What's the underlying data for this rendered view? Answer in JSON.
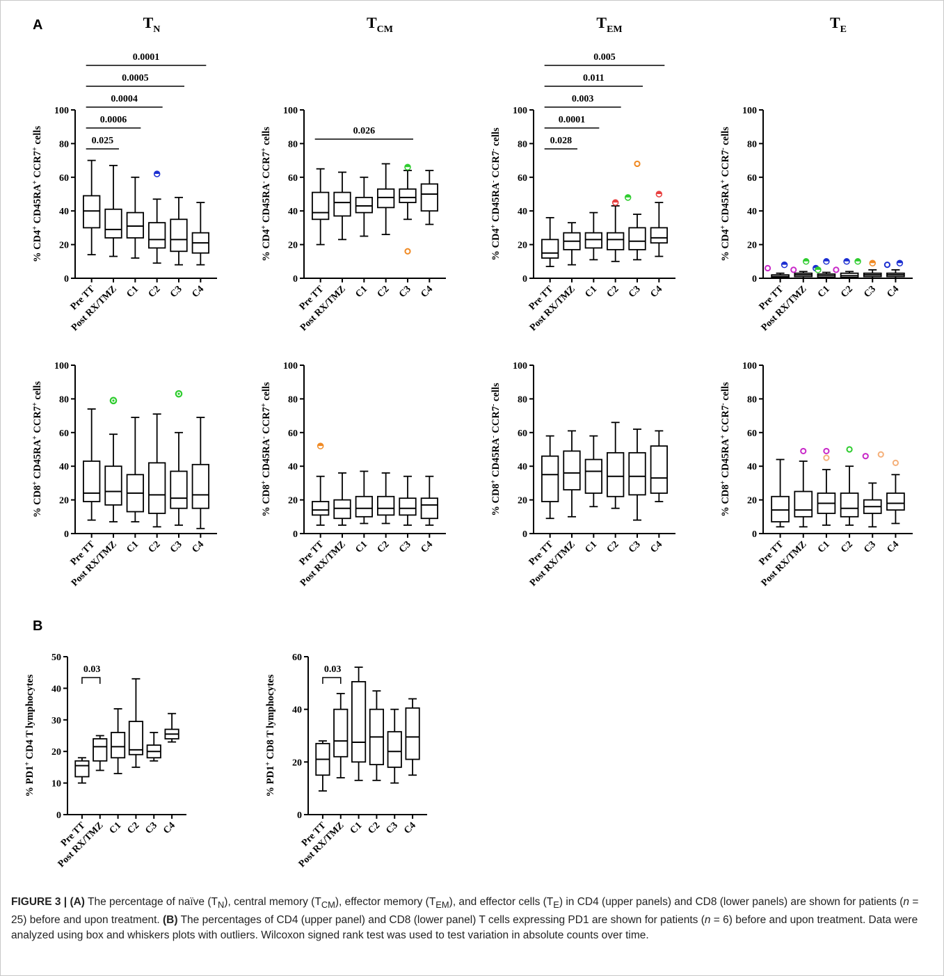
{
  "panel_labels": {
    "a": "A",
    "b": "B"
  },
  "column_titles": [
    {
      "main": "T",
      "sub": "N"
    },
    {
      "main": "T",
      "sub": "CM"
    },
    {
      "main": "T",
      "sub": "EM"
    },
    {
      "main": "T",
      "sub": "E"
    }
  ],
  "caption": {
    "label": "FIGURE 3 | ",
    "text_a_marker": "(A)",
    "text_a": " The percentage of naïve (T",
    "sub_n": "N",
    "text_a2": "), central memory (T",
    "sub_cm": "CM",
    "text_a3": "), effector memory (T",
    "sub_em": "EM",
    "text_a4": "), and effector cells (T",
    "sub_e": "E",
    "text_a5": ") in CD4 (upper panels) and CD8 (lower panels) are shown for patients (",
    "n_a_var": "n",
    "n_a_val": " = 25) before and upon treatment. ",
    "text_b_marker": "(B)",
    "text_b": " The percentages of CD4 (upper panel) and CD8 (lower panel) T cells expressing PD1 are shown for patients (",
    "n_b_var": "n",
    "n_b_val": " = 6) before and upon treatment. Data were analyzed using box and whiskers plots with outliers. Wilcoxon signed rank test was used to test variation in absolute counts over time."
  },
  "chart_data": [
    {
      "type": "boxplot",
      "ylabel": "% CD4+ CD45RA+ CCR7+ cells",
      "ylim": [
        0,
        100
      ],
      "yticks": [
        0,
        20,
        40,
        60,
        80,
        100
      ],
      "categories": [
        "Pre TT",
        "Post RX/TMZ",
        "C1",
        "C2",
        "C3",
        "C4"
      ],
      "boxes": [
        {
          "min": 14,
          "q1": 30,
          "median": 40,
          "q3": 49,
          "max": 70
        },
        {
          "min": 13,
          "q1": 24,
          "median": 29,
          "q3": 41,
          "max": 67
        },
        {
          "min": 12,
          "q1": 24,
          "median": 31,
          "q3": 39,
          "max": 60
        },
        {
          "min": 9,
          "q1": 18,
          "median": 23,
          "q3": 33,
          "max": 47
        },
        {
          "min": 8,
          "q1": 16,
          "median": 23,
          "q3": 35,
          "max": 48
        },
        {
          "min": 8,
          "q1": 15,
          "median": 21,
          "q3": 27,
          "max": 45
        }
      ],
      "outliers": [
        {
          "cat": 3,
          "value": 62,
          "color": "#1c2fd1",
          "style": "half"
        }
      ],
      "brackets": [
        {
          "from": 0,
          "to": 1,
          "label": "0.025"
        },
        {
          "from": 0,
          "to": 2,
          "label": "0.0006"
        },
        {
          "from": 0,
          "to": 3,
          "label": "0.0004"
        },
        {
          "from": 0,
          "to": 4,
          "label": "0.0005"
        },
        {
          "from": 0,
          "to": 5,
          "label": "0.0001"
        }
      ]
    },
    {
      "type": "boxplot",
      "ylabel": "% CD4+ CD45RA- CCR7+ cells",
      "ylim": [
        0,
        100
      ],
      "yticks": [
        0,
        20,
        40,
        60,
        80,
        100
      ],
      "categories": [
        "Pre TT",
        "Post RX/TMZ",
        "C1",
        "C2",
        "C3",
        "C4"
      ],
      "boxes": [
        {
          "min": 20,
          "q1": 35,
          "median": 39,
          "q3": 51,
          "max": 65
        },
        {
          "min": 23,
          "q1": 37,
          "median": 45,
          "q3": 51,
          "max": 63
        },
        {
          "min": 25,
          "q1": 39,
          "median": 43,
          "q3": 48,
          "max": 60
        },
        {
          "min": 26,
          "q1": 42,
          "median": 48,
          "q3": 53,
          "max": 68
        },
        {
          "min": 35,
          "q1": 45,
          "median": 48,
          "q3": 53,
          "max": 64
        },
        {
          "min": 32,
          "q1": 40,
          "median": 50,
          "q3": 56,
          "max": 64
        }
      ],
      "outliers": [
        {
          "cat": 4,
          "value": 66,
          "color": "#2ecc2e",
          "style": "half"
        },
        {
          "cat": 4,
          "value": 16,
          "color": "#f08a24",
          "style": "ring"
        }
      ],
      "brackets": [
        {
          "from": 0,
          "to": 4,
          "label": "0.026"
        }
      ]
    },
    {
      "type": "boxplot",
      "ylabel": "% CD4+ CD45RA- CCR7- cells",
      "ylim": [
        0,
        100
      ],
      "yticks": [
        0,
        20,
        40,
        60,
        80,
        100
      ],
      "categories": [
        "Pre TT",
        "Post RX/TMZ",
        "C1",
        "C2",
        "C3",
        "C4"
      ],
      "boxes": [
        {
          "min": 7,
          "q1": 12,
          "median": 15,
          "q3": 23,
          "max": 36
        },
        {
          "min": 8,
          "q1": 17,
          "median": 22,
          "q3": 27,
          "max": 33
        },
        {
          "min": 11,
          "q1": 18,
          "median": 23,
          "q3": 27,
          "max": 39
        },
        {
          "min": 10,
          "q1": 17,
          "median": 23,
          "q3": 27,
          "max": 43
        },
        {
          "min": 11,
          "q1": 17,
          "median": 22,
          "q3": 30,
          "max": 38
        },
        {
          "min": 13,
          "q1": 21,
          "median": 24,
          "q3": 30,
          "max": 45
        }
      ],
      "outliers": [
        {
          "cat": 3,
          "value": 45,
          "color": "#e84040",
          "style": "half"
        },
        {
          "cat": 3,
          "value": 48,
          "color": "#2ecc2e",
          "style": "half",
          "dx": 18
        },
        {
          "cat": 4,
          "value": 68,
          "color": "#f08a24",
          "style": "ring"
        },
        {
          "cat": 5,
          "value": 50,
          "color": "#e84040",
          "style": "half"
        }
      ],
      "brackets": [
        {
          "from": 0,
          "to": 1,
          "label": "0.028"
        },
        {
          "from": 0,
          "to": 2,
          "label": "0.0001"
        },
        {
          "from": 0,
          "to": 3,
          "label": "0.003"
        },
        {
          "from": 0,
          "to": 4,
          "label": "0.011"
        },
        {
          "from": 0,
          "to": 5,
          "label": "0.005"
        }
      ]
    },
    {
      "type": "boxplot",
      "ylabel": "% CD4+ CD45RA+ CCR7- cells",
      "ylim": [
        0,
        100
      ],
      "yticks": [
        0,
        20,
        40,
        60,
        80,
        100
      ],
      "categories": [
        "Pre TT",
        "Post RX/TMZ",
        "C1",
        "C2",
        "C3",
        "C4"
      ],
      "boxes": [
        {
          "min": 0,
          "q1": 0.5,
          "median": 1,
          "q3": 2,
          "max": 3
        },
        {
          "min": 0,
          "q1": 1,
          "median": 2,
          "q3": 3,
          "max": 4
        },
        {
          "min": 0,
          "q1": 0.5,
          "median": 1.5,
          "q3": 2.5,
          "max": 3.5
        },
        {
          "min": 0,
          "q1": 0.5,
          "median": 1.5,
          "q3": 3,
          "max": 4
        },
        {
          "min": 0,
          "q1": 1,
          "median": 2,
          "q3": 3,
          "max": 5
        },
        {
          "min": 0,
          "q1": 1,
          "median": 2,
          "q3": 3,
          "max": 5
        }
      ],
      "outliers": [
        {
          "cat": 0,
          "value": 6,
          "color": "#c828c8",
          "style": "ring",
          "dx": -18
        },
        {
          "cat": 0,
          "value": 8,
          "color": "#1c2fd1",
          "style": "half",
          "dx": 6
        },
        {
          "cat": 1,
          "value": 5,
          "color": "#c828c8",
          "style": "ring",
          "dx": -14
        },
        {
          "cat": 1,
          "value": 10,
          "color": "#2ecc2e",
          "style": "half",
          "dx": 4
        },
        {
          "cat": 1,
          "value": 6,
          "color": "#1c2fd1",
          "style": "half",
          "dx": 18
        },
        {
          "cat": 2,
          "value": 5,
          "color": "#2ecc2e",
          "style": "half",
          "dx": -12
        },
        {
          "cat": 2,
          "value": 10,
          "color": "#1c2fd1",
          "style": "half",
          "dx": 0
        },
        {
          "cat": 2,
          "value": 5,
          "color": "#c828c8",
          "style": "ring",
          "dx": 14
        },
        {
          "cat": 3,
          "value": 10,
          "color": "#1c2fd1",
          "style": "half",
          "dx": -4
        },
        {
          "cat": 3,
          "value": 10,
          "color": "#2ecc2e",
          "style": "half",
          "dx": 12
        },
        {
          "cat": 4,
          "value": 9,
          "color": "#f08a24",
          "style": "half"
        },
        {
          "cat": 5,
          "value": 8,
          "color": "#1c2fd1",
          "style": "ring",
          "dx": -12
        },
        {
          "cat": 5,
          "value": 9,
          "color": "#1c2fd1",
          "style": "half",
          "dx": 6
        }
      ],
      "brackets": []
    },
    {
      "type": "boxplot",
      "ylabel": "% CD8+ CD45RA+ CCR7+ cells",
      "ylim": [
        0,
        100
      ],
      "yticks": [
        0,
        20,
        40,
        60,
        80,
        100
      ],
      "categories": [
        "Pre TT",
        "Post RX/TMZ",
        "C1",
        "C2",
        "C3",
        "C4"
      ],
      "boxes": [
        {
          "min": 8,
          "q1": 19,
          "median": 24,
          "q3": 43,
          "max": 74
        },
        {
          "min": 7,
          "q1": 17,
          "median": 25,
          "q3": 40,
          "max": 59
        },
        {
          "min": 7,
          "q1": 13,
          "median": 24,
          "q3": 35,
          "max": 69
        },
        {
          "min": 4,
          "q1": 12,
          "median": 23,
          "q3": 42,
          "max": 71
        },
        {
          "min": 5,
          "q1": 15,
          "median": 21,
          "q3": 37,
          "max": 60
        },
        {
          "min": 3,
          "q1": 15,
          "median": 23,
          "q3": 41,
          "max": 69
        }
      ],
      "outliers": [
        {
          "cat": 1,
          "value": 79,
          "color": "#2ecc2e",
          "style": "dot"
        },
        {
          "cat": 4,
          "value": 83,
          "color": "#2ecc2e",
          "style": "dot"
        }
      ],
      "brackets": []
    },
    {
      "type": "boxplot",
      "ylabel": "% CD8+ CD45RA- CCR7+ cells",
      "ylim": [
        0,
        100
      ],
      "yticks": [
        0,
        20,
        40,
        60,
        80,
        100
      ],
      "categories": [
        "Pre TT",
        "Post RX/TMZ",
        "C1",
        "C2",
        "C3",
        "C4"
      ],
      "boxes": [
        {
          "min": 5,
          "q1": 11,
          "median": 14,
          "q3": 19,
          "max": 34
        },
        {
          "min": 5,
          "q1": 9,
          "median": 15,
          "q3": 20,
          "max": 36
        },
        {
          "min": 6,
          "q1": 10,
          "median": 15,
          "q3": 22,
          "max": 37
        },
        {
          "min": 6,
          "q1": 11,
          "median": 15,
          "q3": 22,
          "max": 36
        },
        {
          "min": 5,
          "q1": 11,
          "median": 15,
          "q3": 21,
          "max": 34
        },
        {
          "min": 5,
          "q1": 9,
          "median": 17,
          "q3": 21,
          "max": 34
        }
      ],
      "outliers": [
        {
          "cat": 0,
          "value": 52,
          "color": "#f08a24",
          "style": "half"
        }
      ],
      "brackets": []
    },
    {
      "type": "boxplot",
      "ylabel": "% CD8+ CD45RA- CCR7- cells",
      "ylim": [
        0,
        100
      ],
      "yticks": [
        0,
        20,
        40,
        60,
        80,
        100
      ],
      "categories": [
        "Pre TT",
        "Post RX/TMZ",
        "C1",
        "C2",
        "C3",
        "C4"
      ],
      "boxes": [
        {
          "min": 9,
          "q1": 19,
          "median": 35,
          "q3": 46,
          "max": 58
        },
        {
          "min": 10,
          "q1": 26,
          "median": 36,
          "q3": 49,
          "max": 61
        },
        {
          "min": 16,
          "q1": 24,
          "median": 37,
          "q3": 44,
          "max": 58
        },
        {
          "min": 15,
          "q1": 22,
          "median": 34,
          "q3": 48,
          "max": 66
        },
        {
          "min": 8,
          "q1": 23,
          "median": 34,
          "q3": 48,
          "max": 62
        },
        {
          "min": 19,
          "q1": 24,
          "median": 33,
          "q3": 52,
          "max": 61
        }
      ],
      "outliers": [],
      "brackets": []
    },
    {
      "type": "boxplot",
      "ylabel": "% CD8+ CD45RA+ CCR7- cells",
      "ylim": [
        0,
        100
      ],
      "yticks": [
        0,
        20,
        40,
        60,
        80,
        100
      ],
      "categories": [
        "Pre TT",
        "Post RX/TMZ",
        "C1",
        "C2",
        "C3",
        "C4"
      ],
      "boxes": [
        {
          "min": 4,
          "q1": 7,
          "median": 14,
          "q3": 22,
          "max": 44
        },
        {
          "min": 4,
          "q1": 10,
          "median": 14,
          "q3": 25,
          "max": 43
        },
        {
          "min": 5,
          "q1": 12,
          "median": 18,
          "q3": 24,
          "max": 38
        },
        {
          "min": 5,
          "q1": 10,
          "median": 15,
          "q3": 24,
          "max": 40
        },
        {
          "min": 4,
          "q1": 12,
          "median": 16,
          "q3": 20,
          "max": 30
        },
        {
          "min": 6,
          "q1": 14,
          "median": 18,
          "q3": 24,
          "max": 35
        }
      ],
      "outliers": [
        {
          "cat": 1,
          "value": 49,
          "color": "#c828c8",
          "style": "ring"
        },
        {
          "cat": 2,
          "value": 49,
          "color": "#c828c8",
          "style": "ring"
        },
        {
          "cat": 2,
          "value": 45,
          "color": "#f5b07a",
          "style": "ring"
        },
        {
          "cat": 3,
          "value": 50,
          "color": "#2ecc2e",
          "style": "ring"
        },
        {
          "cat": 4,
          "value": 46,
          "color": "#c828c8",
          "style": "ring",
          "dx": -10
        },
        {
          "cat": 4,
          "value": 47,
          "color": "#f5b07a",
          "style": "ring",
          "dx": 12
        },
        {
          "cat": 5,
          "value": 42,
          "color": "#f5b07a",
          "style": "ring"
        }
      ],
      "brackets": []
    },
    {
      "type": "boxplot",
      "ylabel": "% PD1+ CD4 T lymphocytes",
      "ylim": [
        0,
        50
      ],
      "yticks": [
        0,
        10,
        20,
        30,
        40,
        50
      ],
      "categories": [
        "Pre TT",
        "Post RX/TMZ",
        "C1",
        "C2",
        "C3",
        "C4"
      ],
      "boxes": [
        {
          "min": 10,
          "q1": 12,
          "median": 15.5,
          "q3": 17,
          "max": 18
        },
        {
          "min": 14,
          "q1": 17,
          "median": 21.5,
          "q3": 24,
          "max": 25
        },
        {
          "min": 13,
          "q1": 18,
          "median": 21.5,
          "q3": 26,
          "max": 33.5
        },
        {
          "min": 15,
          "q1": 19,
          "median": 20.5,
          "q3": 29.5,
          "max": 43
        },
        {
          "min": 17,
          "q1": 18,
          "median": 20,
          "q3": 22,
          "max": 26
        },
        {
          "min": 23,
          "q1": 24,
          "median": 25.5,
          "q3": 27,
          "max": 32
        }
      ],
      "outliers": [],
      "brackets": [
        {
          "from": 0,
          "to": 1,
          "label": "0.03",
          "style": "tick"
        }
      ]
    },
    {
      "type": "boxplot",
      "ylabel": "% PD1+ CD8 T lymphocytes",
      "ylim": [
        0,
        60
      ],
      "yticks": [
        0,
        20,
        40,
        60
      ],
      "categories": [
        "Pre TT",
        "Post RX/TMZ",
        "C1",
        "C2",
        "C3",
        "C4"
      ],
      "boxes": [
        {
          "min": 9,
          "q1": 15,
          "median": 21,
          "q3": 27,
          "max": 28
        },
        {
          "min": 14,
          "q1": 22,
          "median": 28,
          "q3": 40,
          "max": 46
        },
        {
          "min": 13,
          "q1": 20,
          "median": 27.5,
          "q3": 50.5,
          "max": 56
        },
        {
          "min": 13,
          "q1": 19,
          "median": 29.5,
          "q3": 40,
          "max": 47
        },
        {
          "min": 12,
          "q1": 18,
          "median": 24,
          "q3": 31.5,
          "max": 40
        },
        {
          "min": 15,
          "q1": 21,
          "median": 29.5,
          "q3": 40.5,
          "max": 44
        }
      ],
      "outliers": [],
      "brackets": [
        {
          "from": 0,
          "to": 1,
          "label": "0.03",
          "style": "tick"
        }
      ]
    }
  ]
}
